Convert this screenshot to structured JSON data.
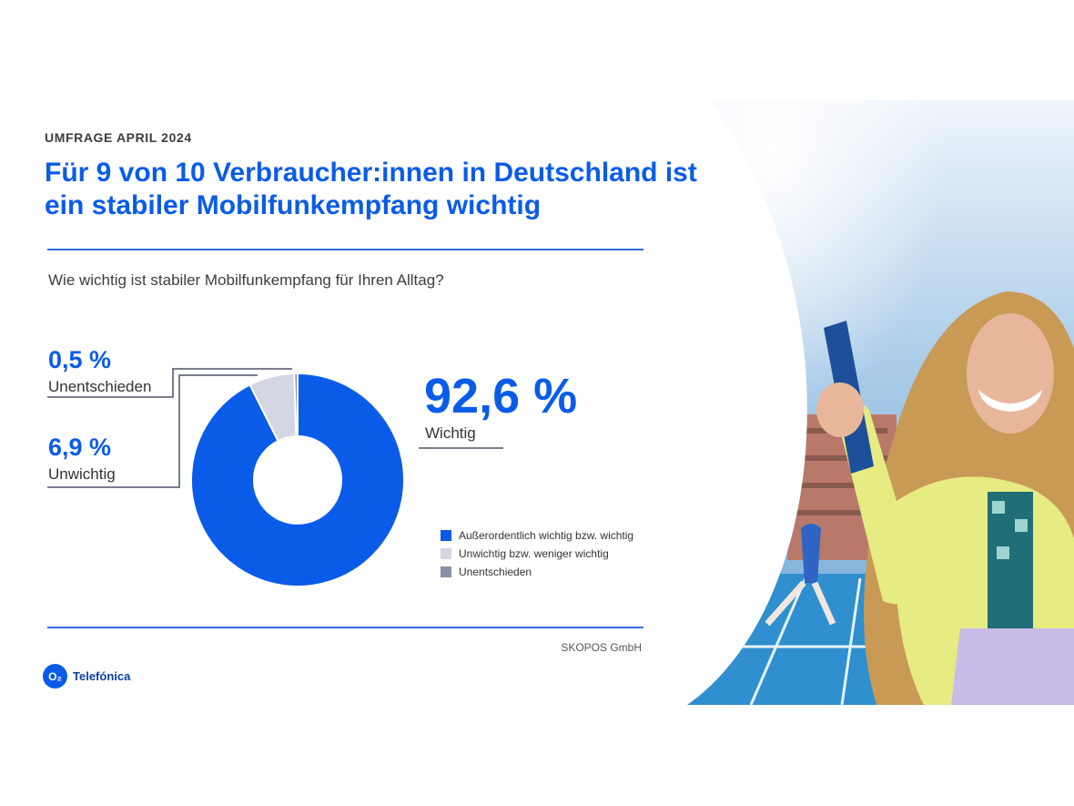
{
  "header": {
    "eyebrow": "UMFRAGE  APRIL 2024",
    "headline": "Für 9 von 10 Verbraucher:innen in Deutschland ist ein stabiler Mobilfunkempfang wichtig"
  },
  "question": "Wie wichtig ist stabiler Mobilfunkempfang  für Ihren Alltag?",
  "callouts": {
    "undecided": {
      "value": "0,5 %",
      "label": "Unentschieden"
    },
    "unimportant": {
      "value": "6,9 %",
      "label": "Unwichtig"
    },
    "important": {
      "value": "92,6 %",
      "label": "Wichtig"
    }
  },
  "chart_data": {
    "type": "pie",
    "donut": true,
    "title": "",
    "categories": [
      "Außerordentlich wichtig bzw. wichtig",
      "Unwichtig bzw. weniger wichtig",
      "Unentschieden"
    ],
    "values": [
      92.6,
      6.9,
      0.5
    ],
    "colors": [
      "#0a5ce8",
      "#d4d6e4",
      "#8a8fa3"
    ],
    "legend_position": "bottom-right"
  },
  "legend": [
    {
      "label": "Außerordentlich wichtig bzw. wichtig",
      "color": "#0a5ce8"
    },
    {
      "label": "Unwichtig bzw. weniger wichtig",
      "color": "#d4d6e4"
    },
    {
      "label": "Unentschieden",
      "color": "#8a8fa3"
    }
  ],
  "footer": {
    "source": "SKOPOS GmbH",
    "logo_mark": "O₂",
    "logo_text": "Telefónica"
  },
  "colors": {
    "accent": "#0a5ce8",
    "rule": "#2f6fe0",
    "connector": "#4d5266"
  },
  "photo": {
    "icon": "woman-with-phone-photo"
  }
}
